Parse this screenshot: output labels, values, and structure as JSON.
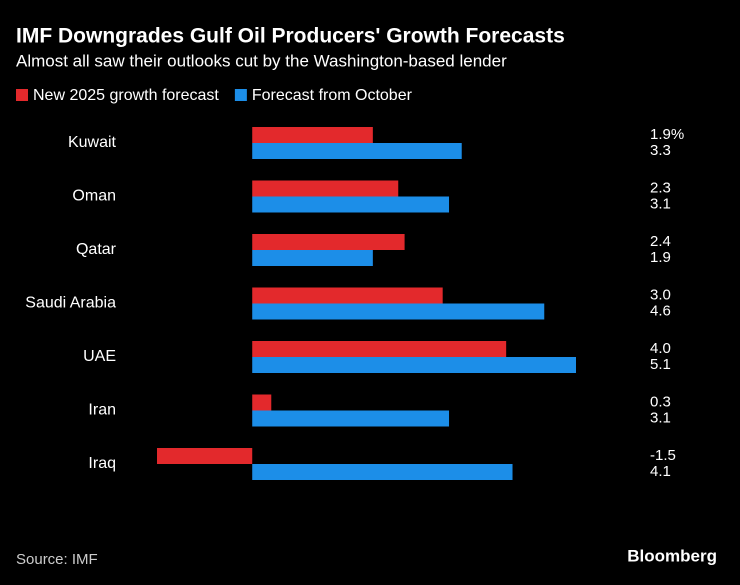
{
  "chart_data": {
    "type": "hbar",
    "title": "IMF Downgrades Gulf Oil Producers' Growth Forecasts",
    "subtitle": "Almost all saw their outlooks cut by the Washington-based lender",
    "categories": [
      "Kuwait",
      "Oman",
      "Qatar",
      "Saudi Arabia",
      "UAE",
      "Iran",
      "Iraq"
    ],
    "series": [
      {
        "name": "New 2025 growth forecast",
        "color": "#e3292c",
        "values": [
          1.9,
          2.3,
          2.4,
          3.0,
          4.0,
          0.3,
          -1.5
        ],
        "value_labels": [
          "1.9%",
          "2.3",
          "2.4",
          "3.0",
          "4.0",
          "0.3",
          "-1.5"
        ]
      },
      {
        "name": "Forecast from October",
        "color": "#1c8ee8",
        "values": [
          3.3,
          3.1,
          1.9,
          4.6,
          5.1,
          3.1,
          4.1
        ],
        "value_labels": [
          "3.3",
          "3.1",
          "1.9",
          "4.6",
          "5.1",
          "3.1",
          "4.1"
        ]
      }
    ],
    "xlim": [
      -1.5,
      5.1
    ],
    "source": "Source: IMF",
    "brand": "Bloomberg"
  }
}
